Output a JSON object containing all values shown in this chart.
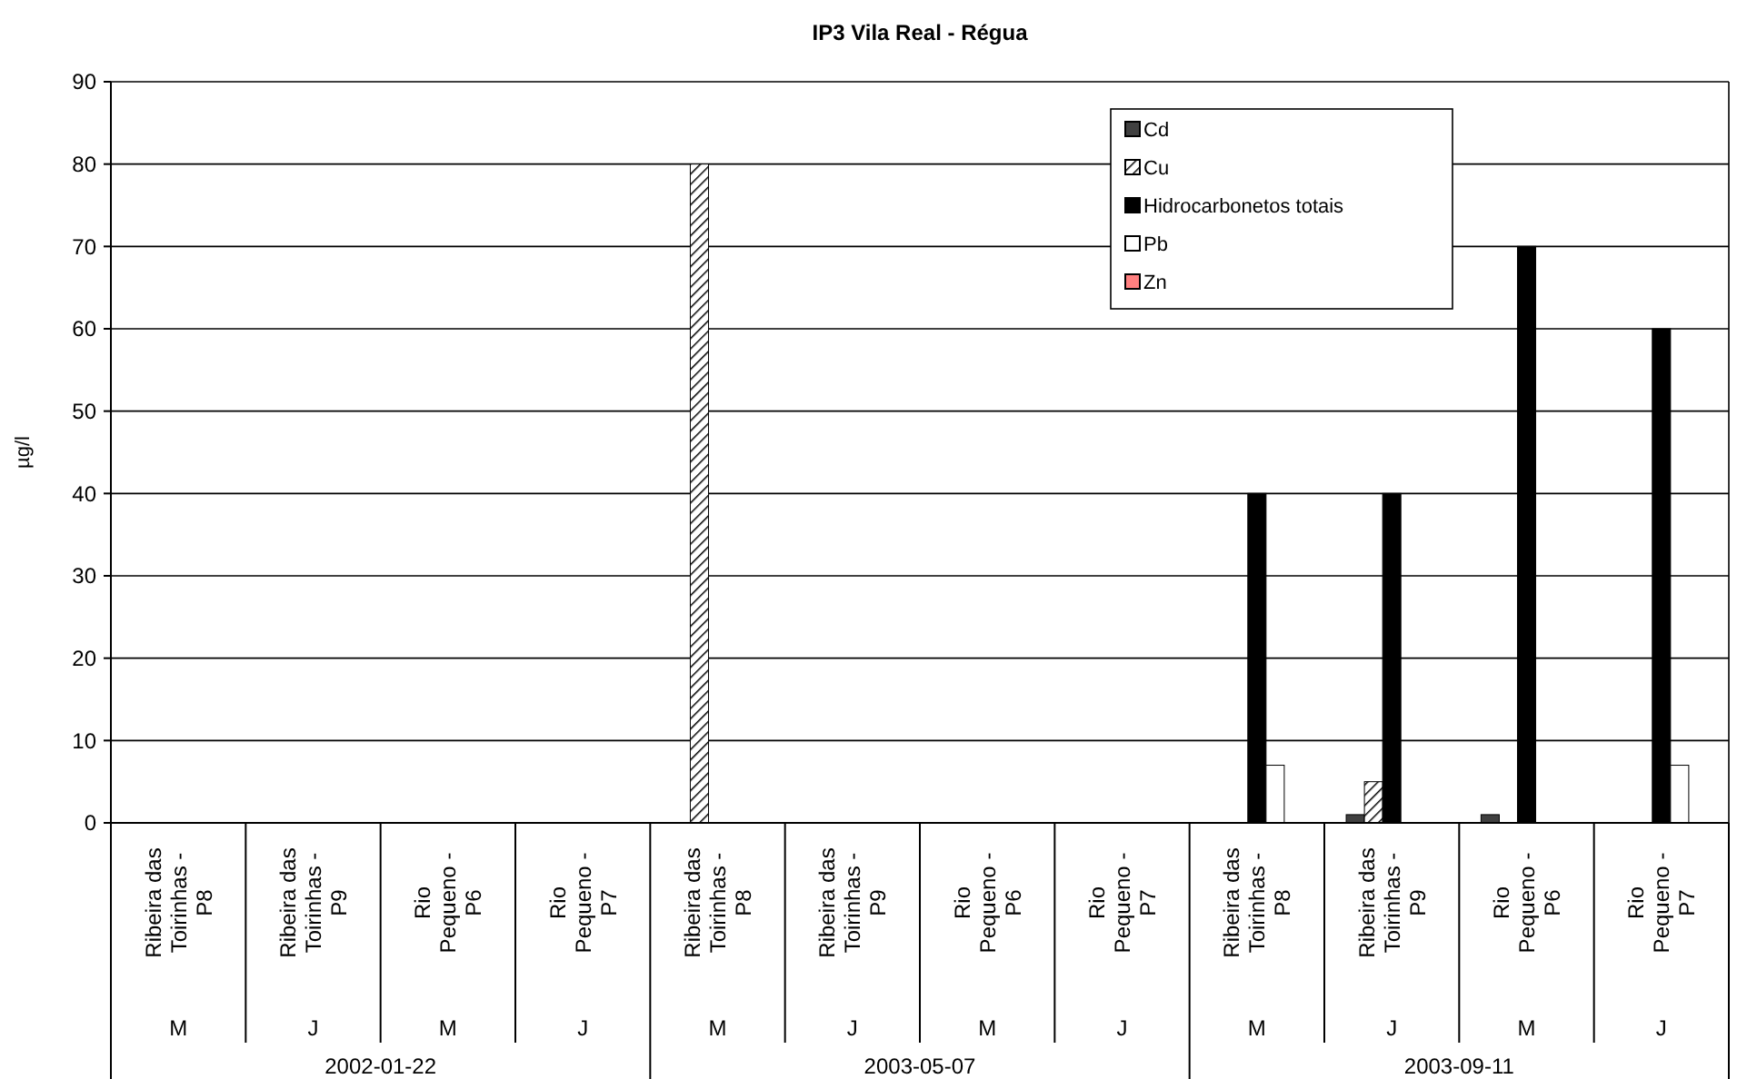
{
  "chart_data": {
    "type": "bar",
    "title": "IP3 Vila Real - Régua",
    "ylabel": "µg/l",
    "categories": [
      "Ribeira das\nToirinhas -\nP8\nM",
      "Ribeira das\nToirinhas -\nP9\nJ",
      "Rio\nPequeno -\nP6\nM",
      "Rio\nPequeno -\nP7\nJ",
      "Ribeira das\nToirinhas -\nP8\nM",
      "Ribeira das\nToirinhas -\nP9\nJ",
      "Rio\nPequeno -\nP6\nM",
      "Rio\nPequeno -\nP7\nJ",
      "Ribeira das\nToirinhas -\nP8\nM",
      "Ribeira das\nToirinhas -\nP9\nJ",
      "Rio\nPequeno -\nP6\nM",
      "Rio\nPequeno -\nP7\nJ"
    ],
    "series": [
      {
        "name": "Cd",
        "color": "#404040",
        "values": [
          null,
          null,
          null,
          null,
          null,
          null,
          null,
          null,
          null,
          1,
          1,
          null
        ]
      },
      {
        "name": "Cu",
        "color": "#000000",
        "values": [
          null,
          null,
          null,
          null,
          80,
          null,
          null,
          null,
          null,
          5,
          null,
          null
        ]
      },
      {
        "name": "Hidrocarbonetos totais",
        "color": "#000000",
        "values": [
          null,
          null,
          null,
          null,
          null,
          null,
          null,
          null,
          40,
          40,
          70,
          60
        ]
      },
      {
        "name": "Pb",
        "color": "#ffffff",
        "values": [
          null,
          null,
          null,
          null,
          null,
          null,
          null,
          null,
          7,
          null,
          null,
          7
        ]
      },
      {
        "name": "Zn",
        "color": "#ff8080",
        "values": [
          null,
          null,
          null,
          null,
          null,
          null,
          null,
          null,
          null,
          null,
          null,
          null
        ]
      }
    ],
    "annotations": [
      "2002-01-22",
      "2003-05-07",
      "2003-09-11"
    ],
    "ylim": [
      0,
      90
    ],
    "yticks": [
      0,
      10,
      20,
      30,
      40,
      50,
      60,
      70,
      80,
      90
    ],
    "grid": "y",
    "legend": "top right"
  }
}
